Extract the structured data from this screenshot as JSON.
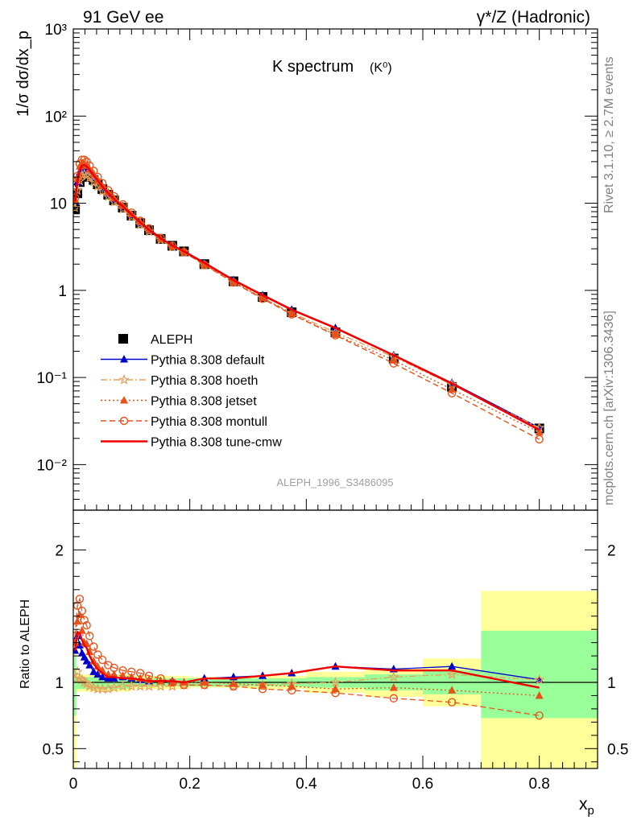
{
  "header": {
    "left": "91 GeV ee",
    "right": "γ*/Z (Hadronic)"
  },
  "side": {
    "rivet": "Rivet 3.1.10, ≥ 2.7M events",
    "mcplots": "mcplots.cern.ch [arXiv:1306.3436]"
  },
  "chart_data": [
    {
      "type": "line",
      "title": "K spectrum",
      "title_sub": "(K⁰)",
      "ylabel": "1/σ dσ/dx_p",
      "xlabel": "",
      "yscale": "log",
      "ylim": [
        0.003,
        1000
      ],
      "xlim": [
        0,
        0.9
      ],
      "watermark": "ALEPH_1996_S3486095",
      "legend_position": "lower-left",
      "y_tick_labels": [
        "10⁻²",
        "10⁻¹",
        "1",
        "10",
        "10²",
        "10³"
      ],
      "x": [
        0.003,
        0.007,
        0.011,
        0.015,
        0.019,
        0.023,
        0.028,
        0.035,
        0.042,
        0.05,
        0.06,
        0.07,
        0.085,
        0.1,
        0.115,
        0.13,
        0.15,
        0.17,
        0.19,
        0.225,
        0.275,
        0.325,
        0.375,
        0.45,
        0.55,
        0.65,
        0.8
      ],
      "series": [
        {
          "name": "ALEPH",
          "color": "#000000",
          "marker": "square",
          "values": [
            8.5,
            13.0,
            17.5,
            20.5,
            21.5,
            21.0,
            20.0,
            18.5,
            16.5,
            14.5,
            12.5,
            10.8,
            8.9,
            7.2,
            5.9,
            4.9,
            3.9,
            3.25,
            2.8,
            2.0,
            1.27,
            0.84,
            0.56,
            0.33,
            0.165,
            0.078,
            0.026
          ]
        },
        {
          "name": "Pythia 8.308 default",
          "color": "#0000cc",
          "marker": "triangle",
          "line": "solid",
          "values": [
            10.5,
            17.5,
            22.5,
            25.0,
            25.5,
            24.5,
            22.5,
            20.0,
            17.5,
            15.0,
            12.8,
            11.1,
            9.2,
            7.4,
            6.0,
            4.95,
            3.95,
            3.28,
            2.8,
            2.06,
            1.31,
            0.88,
            0.6,
            0.37,
            0.181,
            0.087,
            0.0265
          ]
        },
        {
          "name": "Pythia 8.308 hoeth",
          "color": "#e6a05a",
          "marker": "star",
          "line": "dashdot",
          "values": [
            8.8,
            14.0,
            18.0,
            21.0,
            21.5,
            20.8,
            19.5,
            17.6,
            15.7,
            13.8,
            11.9,
            10.3,
            8.6,
            7.0,
            5.7,
            4.75,
            3.8,
            3.15,
            2.75,
            1.96,
            1.23,
            0.82,
            0.55,
            0.33,
            0.172,
            0.083,
            0.0265
          ]
        },
        {
          "name": "Pythia 8.308 jetset",
          "color": "#e8521a",
          "marker": "triangle",
          "line": "dotted",
          "values": [
            11.0,
            19.0,
            26.5,
            28.5,
            28.0,
            27.0,
            24.5,
            21.5,
            18.5,
            15.8,
            13.3,
            11.4,
            9.35,
            7.5,
            6.1,
            5.0,
            3.95,
            3.25,
            2.8,
            2.0,
            1.26,
            0.82,
            0.54,
            0.31,
            0.158,
            0.073,
            0.0235
          ]
        },
        {
          "name": "Pythia 8.308 montull",
          "color": "#e8521a",
          "marker": "circle-open",
          "line": "dashed",
          "values": [
            11.5,
            20.5,
            28.5,
            31.5,
            31.5,
            30.0,
            27.0,
            23.5,
            20.0,
            17.0,
            14.1,
            12.0,
            9.7,
            7.8,
            6.3,
            5.15,
            4.0,
            3.25,
            2.75,
            1.96,
            1.23,
            0.8,
            0.53,
            0.305,
            0.145,
            0.066,
            0.0195
          ]
        },
        {
          "name": "Pythia 8.308 tune-cmw",
          "color": "#ee0000",
          "marker": "none",
          "line": "solid",
          "values": [
            10.5,
            18.0,
            24.0,
            27.0,
            27.5,
            26.5,
            24.0,
            21.0,
            18.2,
            15.5,
            13.0,
            11.2,
            9.2,
            7.4,
            6.0,
            4.95,
            3.95,
            3.27,
            2.8,
            2.06,
            1.31,
            0.88,
            0.6,
            0.37,
            0.18,
            0.085,
            0.025
          ]
        }
      ]
    },
    {
      "type": "line",
      "ylabel": "Ratio to ALEPH",
      "xlabel": "x_p",
      "ylim": [
        0.35,
        2.3
      ],
      "xlim": [
        0,
        0.9
      ],
      "x_ticks": [
        0,
        0.2,
        0.4,
        0.6,
        0.8
      ],
      "x_tick_labels": [
        "0",
        "0.2",
        "0.4",
        "0.6",
        "0.8"
      ],
      "y_ticks": [
        0.5,
        1,
        2
      ],
      "y_tick_labels": [
        "0.5",
        "1",
        "2"
      ],
      "bands": [
        {
          "x0": 0.0,
          "x1": 0.005,
          "yellow": [
            0.35,
            1.35
          ],
          "green": [
            0.75,
            1.2
          ]
        },
        {
          "x0": 0.005,
          "x1": 0.1,
          "yellow": [
            0.93,
            1.06
          ],
          "green": [
            0.95,
            1.04
          ]
        },
        {
          "x0": 0.1,
          "x1": 0.2,
          "yellow": [
            0.95,
            1.05
          ],
          "green": [
            0.97,
            1.03
          ]
        },
        {
          "x0": 0.2,
          "x1": 0.3,
          "yellow": [
            0.96,
            1.04
          ],
          "green": [
            0.97,
            1.03
          ]
        },
        {
          "x0": 0.3,
          "x1": 0.4,
          "yellow": [
            0.95,
            1.05
          ],
          "green": [
            0.97,
            1.03
          ]
        },
        {
          "x0": 0.4,
          "x1": 0.5,
          "yellow": [
            0.92,
            1.08
          ],
          "green": [
            0.96,
            1.04
          ]
        },
        {
          "x0": 0.5,
          "x1": 0.6,
          "yellow": [
            0.89,
            1.11
          ],
          "green": [
            0.94,
            1.06
          ]
        },
        {
          "x0": 0.6,
          "x1": 0.7,
          "yellow": [
            0.82,
            1.18
          ],
          "green": [
            0.91,
            1.09
          ]
        },
        {
          "x0": 0.7,
          "x1": 0.9,
          "yellow": [
            0.35,
            1.69
          ],
          "green": [
            0.73,
            1.39
          ]
        }
      ],
      "x": [
        0.003,
        0.007,
        0.011,
        0.015,
        0.019,
        0.023,
        0.028,
        0.035,
        0.042,
        0.05,
        0.06,
        0.07,
        0.085,
        0.1,
        0.115,
        0.13,
        0.15,
        0.17,
        0.19,
        0.225,
        0.275,
        0.325,
        0.375,
        0.45,
        0.55,
        0.65,
        0.8
      ],
      "series": [
        {
          "name": "Pythia 8.308 default",
          "color": "#0000cc",
          "values": [
            1.24,
            1.35,
            1.28,
            1.22,
            1.19,
            1.16,
            1.13,
            1.08,
            1.06,
            1.04,
            1.03,
            1.03,
            1.04,
            1.03,
            1.02,
            1.01,
            1.01,
            1.01,
            1.0,
            1.03,
            1.04,
            1.05,
            1.07,
            1.12,
            1.1,
            1.12,
            1.02
          ]
        },
        {
          "name": "Pythia 8.308 hoeth",
          "color": "#e6a05a",
          "values": [
            1.03,
            1.08,
            1.03,
            1.02,
            1.0,
            0.99,
            0.97,
            0.96,
            0.95,
            0.95,
            0.95,
            0.96,
            0.97,
            0.97,
            0.97,
            0.97,
            0.97,
            0.97,
            0.98,
            0.98,
            0.97,
            0.98,
            0.99,
            1.0,
            1.04,
            1.06,
            1.02
          ]
        },
        {
          "name": "Pythia 8.308 jetset",
          "color": "#e8521a",
          "values": [
            1.3,
            1.46,
            1.51,
            1.39,
            1.3,
            1.29,
            1.23,
            1.16,
            1.12,
            1.09,
            1.06,
            1.06,
            1.05,
            1.04,
            1.03,
            1.02,
            1.01,
            1.0,
            1.0,
            1.0,
            0.99,
            0.98,
            0.97,
            0.95,
            0.96,
            0.94,
            0.9
          ]
        },
        {
          "name": "Pythia 8.308 montull",
          "color": "#e8521a",
          "values": [
            1.35,
            1.58,
            1.63,
            1.54,
            1.47,
            1.43,
            1.35,
            1.27,
            1.21,
            1.17,
            1.13,
            1.11,
            1.09,
            1.08,
            1.07,
            1.05,
            1.03,
            1.0,
            0.98,
            0.98,
            0.97,
            0.95,
            0.94,
            0.92,
            0.88,
            0.85,
            0.75
          ]
        },
        {
          "name": "Pythia 8.308 tune-cmw",
          "color": "#ee0000",
          "values": [
            1.24,
            1.38,
            1.37,
            1.32,
            1.28,
            1.26,
            1.2,
            1.14,
            1.1,
            1.07,
            1.04,
            1.04,
            1.03,
            1.03,
            1.02,
            1.01,
            1.01,
            1.01,
            1.0,
            1.03,
            1.03,
            1.05,
            1.07,
            1.12,
            1.09,
            1.09,
            0.96
          ]
        }
      ]
    }
  ]
}
